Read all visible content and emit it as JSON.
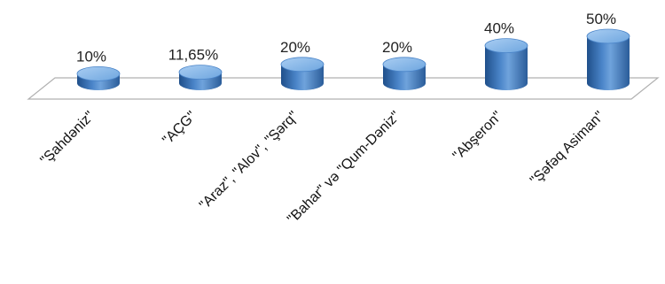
{
  "chart_data": {
    "type": "bar",
    "categories": [
      "\"Şahdəniz\"",
      "\"AÇG\"",
      "\"Araz\", \"Alov\", \"Şərq\"",
      "\"Bahar\" və \"Qum-Dəniz\"",
      "\"Abşeron\"",
      "\"Şəfəq Asiman\""
    ],
    "values": [
      10,
      11.65,
      20,
      20,
      40,
      50
    ],
    "value_labels": [
      "10%",
      "11,65%",
      "20%",
      "20%",
      "40%",
      "50%"
    ],
    "title": "",
    "xlabel": "",
    "ylabel": "",
    "ylim": [
      0,
      50
    ],
    "grid": false,
    "legend": "none",
    "colors": {
      "bar_body": "#4a84c8",
      "bar_top": "#8fbdec",
      "bar_dark": "#1f4f8a",
      "floor_edge": "#b0b0b0"
    }
  }
}
